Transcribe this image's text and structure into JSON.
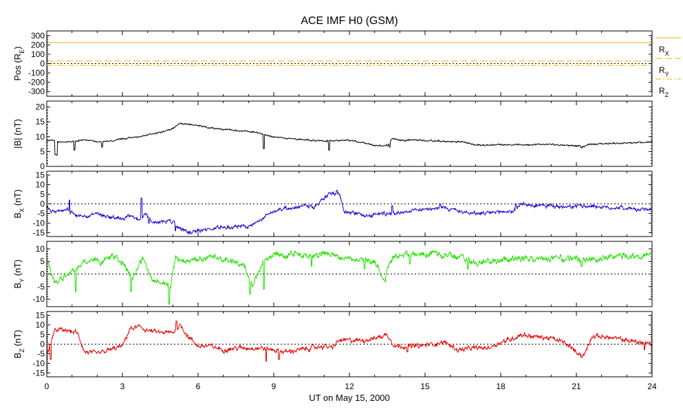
{
  "chart_data": {
    "type": "line",
    "title": "ACE IMF H0 (GSM)",
    "xlabel": "UT on May 15, 2000",
    "xlim": [
      0,
      24
    ],
    "x_ticks": [
      "0",
      "3",
      "6",
      "9",
      "12",
      "15",
      "18",
      "21",
      "24"
    ],
    "x_tick_values": [
      0,
      3,
      6,
      9,
      12,
      15,
      18,
      21,
      24
    ],
    "colors": {
      "position": "#e6b800",
      "b_total": "#000000",
      "bx": "#2200cc",
      "by": "#22e000",
      "bz": "#e60000"
    },
    "panels": [
      {
        "id": "pos",
        "ylabel_main": "Pos (R",
        "ylabel_sub": "E",
        "ylabel_end": ")",
        "ylim": [
          -350,
          350
        ],
        "y_ticks": [
          "300",
          "200",
          "100",
          "0",
          "-100",
          "-200",
          "-300"
        ],
        "y_tick_values": [
          300,
          200,
          100,
          0,
          -100,
          -200,
          -300
        ],
        "zero_line": true,
        "series": [
          {
            "name": "R",
            "name_sub": "X",
            "constant": 226,
            "dash": "none"
          },
          {
            "name": "R",
            "name_sub": "Y",
            "constant": 28,
            "dash": "10,4"
          },
          {
            "name": "R",
            "name_sub": "Z",
            "constant": -20,
            "dash": "8,3,2,3"
          }
        ]
      },
      {
        "id": "bt",
        "ylabel_main": "|B| (nT)",
        "ylim": [
          0,
          22
        ],
        "y_ticks": [
          "20",
          "15",
          "10",
          "5",
          "0"
        ],
        "y_tick_values": [
          20,
          15,
          10,
          5,
          0
        ],
        "zero_line": false,
        "noise": 0.35,
        "x": [
          0,
          0.3,
          0.5,
          1,
          1.5,
          2,
          2.5,
          3,
          3.5,
          4,
          4.5,
          5,
          5.3,
          5.6,
          6,
          6.5,
          7,
          7.5,
          8,
          8.5,
          9,
          9.5,
          10,
          10.5,
          11,
          11.5,
          12,
          12.5,
          13,
          13.5,
          13.7,
          14,
          14.5,
          15,
          15.5,
          16,
          16.5,
          17,
          17.5,
          18,
          18.5,
          19,
          19.5,
          20,
          20.5,
          21,
          21.3,
          21.5,
          22,
          22.5,
          23,
          23.5,
          24
        ],
        "values": [
          8.5,
          8.8,
          8.2,
          8.3,
          9,
          8.3,
          8.5,
          9.2,
          9.8,
          10.5,
          11.5,
          12.8,
          14.5,
          14.2,
          13.8,
          13,
          12.5,
          12,
          11.8,
          11,
          10,
          9.5,
          9.2,
          8.8,
          8.5,
          8.8,
          8.8,
          8,
          7,
          7,
          9.5,
          8.8,
          9,
          8.7,
          8.5,
          8.3,
          8.3,
          7.2,
          7.2,
          7.4,
          7.3,
          7.3,
          7.4,
          7.4,
          7.2,
          7,
          6.6,
          7.5,
          7.6,
          7.8,
          7.8,
          8,
          8.3
        ],
        "spikes": [
          [
            0.35,
            4
          ],
          [
            0.4,
            3.8
          ],
          [
            1.1,
            5.5
          ],
          [
            2.2,
            6.5
          ],
          [
            8.6,
            6
          ],
          [
            11.2,
            5.5
          ],
          [
            13.6,
            6.5
          ],
          [
            21.2,
            6.2
          ]
        ]
      },
      {
        "id": "bx",
        "ylabel_main": "B",
        "ylabel_sub": "X",
        "ylabel_end": " (nT)",
        "ylim": [
          -17,
          17
        ],
        "y_ticks": [
          "15",
          "10",
          "5",
          "0",
          "-5",
          "-10",
          "-15"
        ],
        "y_tick_values": [
          15,
          10,
          5,
          0,
          -5,
          -10,
          -15
        ],
        "zero_line": true,
        "noise": 1.3,
        "x": [
          0,
          0.3,
          0.8,
          1.2,
          1.6,
          2,
          2.5,
          3,
          3.3,
          3.7,
          3.9,
          4.2,
          4.6,
          5,
          5.3,
          5.6,
          6,
          6.5,
          7,
          7.5,
          8,
          8.3,
          8.8,
          9.3,
          9.8,
          10.2,
          10.6,
          11,
          11.3,
          11.6,
          11.8,
          12.2,
          12.8,
          13.3,
          13.8,
          14.2,
          14.8,
          15.3,
          15.8,
          16.4,
          17,
          17.5,
          18,
          18.5,
          18.8,
          19.3,
          20,
          20.6,
          21.2,
          21.6,
          22.2,
          22.8,
          23.4,
          24
        ],
        "values": [
          -2,
          -4,
          -3,
          -6,
          -7,
          -5,
          -7,
          -8,
          -6,
          -9,
          -5,
          -10,
          -9,
          -9,
          -13,
          -15,
          -14,
          -13,
          -12,
          -12,
          -12,
          -10,
          -5,
          -3,
          -2,
          0,
          -2,
          3,
          6,
          5,
          -4,
          -5,
          -6,
          -5,
          -5,
          -4,
          -3,
          -2,
          -2,
          -4,
          -5,
          -5,
          -4,
          -4,
          0,
          -1,
          -1,
          -2,
          -1,
          -1,
          -2,
          -2,
          -3,
          -3
        ],
        "spikes": [
          [
            0.9,
            2
          ],
          [
            3.75,
            3
          ],
          [
            4.05,
            -10
          ],
          [
            5.1,
            -14
          ],
          [
            11.5,
            7
          ],
          [
            13.7,
            -1
          ],
          [
            15.6,
            0
          ],
          [
            18.6,
            0
          ]
        ]
      },
      {
        "id": "by",
        "ylabel_main": "B",
        "ylabel_sub": "Y",
        "ylabel_end": " (nT)",
        "ylim": [
          -13,
          13
        ],
        "y_ticks": [
          "10",
          "5",
          "0",
          "-5",
          "-10"
        ],
        "y_tick_values": [
          10,
          5,
          0,
          -5,
          -10
        ],
        "zero_line": true,
        "noise": 1.6,
        "x": [
          0,
          0.3,
          0.6,
          1,
          1.4,
          1.8,
          2.2,
          2.6,
          3,
          3.4,
          3.8,
          4.2,
          4.6,
          4.9,
          5.1,
          5.5,
          6,
          6.5,
          7,
          7.4,
          7.8,
          8.2,
          8.6,
          9,
          9.5,
          10,
          10.5,
          11,
          11.5,
          12,
          12.5,
          13,
          13.4,
          13.6,
          14,
          14.5,
          15,
          15.5,
          16,
          16.5,
          17,
          17.5,
          18,
          18.5,
          19,
          19.5,
          20,
          20.5,
          21,
          21.5,
          22,
          22.5,
          23,
          23.5,
          24
        ],
        "values": [
          6,
          -3,
          -2,
          2,
          4,
          6,
          5,
          7,
          5,
          -2,
          6,
          -2,
          -3,
          -5,
          6,
          5,
          6,
          7,
          6,
          5,
          3,
          -4,
          5,
          8,
          7,
          8,
          7,
          8,
          7,
          6,
          6,
          5,
          -3,
          5,
          8,
          8,
          8,
          8,
          7,
          7,
          4,
          5,
          5,
          6,
          6,
          6,
          6,
          6,
          6,
          5,
          6,
          7,
          7,
          7,
          8
        ],
        "spikes": [
          [
            1.15,
            -7
          ],
          [
            3.35,
            -7
          ],
          [
            4.85,
            -12
          ],
          [
            8.05,
            -8
          ],
          [
            8.6,
            -6
          ],
          [
            10.5,
            3
          ],
          [
            12.6,
            2
          ],
          [
            14.4,
            4
          ],
          [
            16.7,
            2
          ],
          [
            21.2,
            3
          ]
        ]
      },
      {
        "id": "bz",
        "ylabel_main": "B",
        "ylabel_sub": "Z",
        "ylabel_end": " (nT)",
        "ylim": [
          -17,
          17
        ],
        "y_ticks": [
          "15",
          "10",
          "5",
          "0",
          "-5",
          "-10",
          "-15"
        ],
        "y_tick_values": [
          15,
          10,
          5,
          0,
          -5,
          -10,
          -15
        ],
        "zero_line": true,
        "noise": 1.6,
        "x": [
          0,
          0.3,
          0.5,
          0.8,
          1.2,
          1.5,
          2,
          2.5,
          3,
          3.3,
          3.7,
          4,
          4.5,
          5,
          5.3,
          5.6,
          6,
          6.5,
          7,
          7.5,
          8,
          8.5,
          9,
          9.5,
          10,
          10.5,
          11,
          11.3,
          11.6,
          12,
          12.5,
          13,
          13.5,
          13.8,
          14.2,
          14.8,
          15.3,
          15.8,
          16.3,
          17,
          17.5,
          18,
          18.5,
          18.8,
          19.3,
          20,
          20.5,
          21,
          21.3,
          21.6,
          22,
          22.5,
          23,
          23.5,
          24
        ],
        "values": [
          -6,
          7,
          8,
          7,
          6,
          -4,
          -5,
          -3,
          -1,
          8,
          9,
          7,
          6,
          6,
          10,
          4,
          -1,
          -1,
          -3,
          -2,
          -2,
          -2,
          -3,
          -4,
          -3,
          -2,
          -1,
          -2,
          2,
          2,
          2,
          3,
          5,
          -1,
          -1,
          -1,
          0,
          1,
          -3,
          -2,
          -2,
          1,
          3,
          5,
          4,
          3,
          1,
          -4,
          -6,
          4,
          4,
          3,
          2,
          1,
          0
        ],
        "spikes": [
          [
            0.15,
            -8
          ],
          [
            5.15,
            12
          ],
          [
            8.7,
            -9
          ],
          [
            9.2,
            -8
          ],
          [
            14.3,
            -4
          ],
          [
            21.2,
            -7
          ],
          [
            23.7,
            -3
          ]
        ]
      }
    ],
    "legend_position": "right of top panel"
  }
}
